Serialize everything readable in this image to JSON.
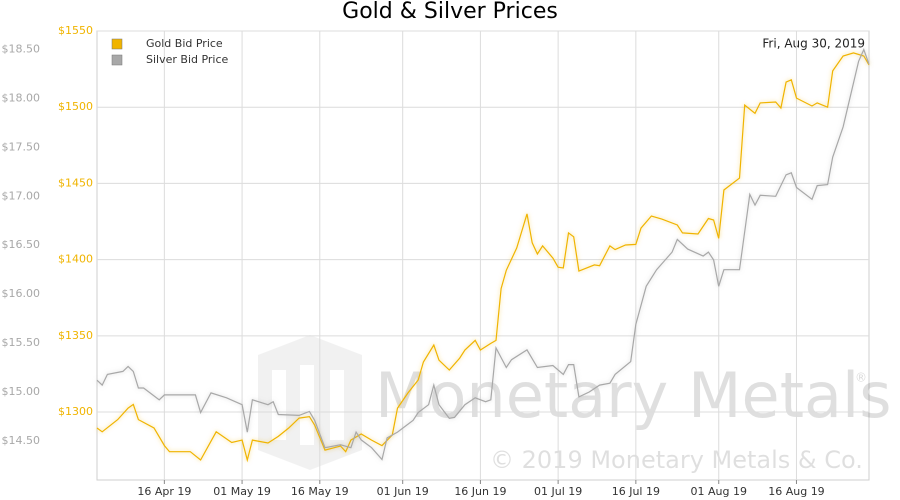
{
  "chart_data": {
    "type": "line",
    "title": "Gold & Silver Prices",
    "annotation": "Fri, Aug 30, 2019",
    "watermark": "Monetary Metals",
    "watermark_mark": "®",
    "copyright": "© 2019 Monetary Metals & Co.",
    "legend": "top-left",
    "grid": true,
    "xlim": [
      "2019-04-03",
      "2019-08-30"
    ],
    "xticks": [
      {
        "value": "2019-04-16",
        "label": "16 Apr 19"
      },
      {
        "value": "2019-05-01",
        "label": "01 May 19"
      },
      {
        "value": "2019-05-16",
        "label": "16 May 19"
      },
      {
        "value": "2019-06-01",
        "label": "01 Jun 19"
      },
      {
        "value": "2019-06-16",
        "label": "16 Jun 19"
      },
      {
        "value": "2019-07-01",
        "label": "01 Jul 19"
      },
      {
        "value": "2019-07-16",
        "label": "16 Jul 19"
      },
      {
        "value": "2019-08-01",
        "label": "01 Aug 19"
      },
      {
        "value": "2019-08-16",
        "label": "16 Aug 19"
      }
    ],
    "ylim": [
      1255.4,
      1550
    ],
    "yticks": [
      {
        "value": 1300,
        "label": "$1300"
      },
      {
        "value": 1350,
        "label": "$1350"
      },
      {
        "value": 1400,
        "label": "$1400"
      },
      {
        "value": 1450,
        "label": "$1450"
      },
      {
        "value": 1500,
        "label": "$1500"
      },
      {
        "value": 1550,
        "label": "$1550"
      }
    ],
    "y2lim": [
      14.1,
      18.69
    ],
    "y2ticks": [
      {
        "value": 14.5,
        "label": "$14.50"
      },
      {
        "value": 15,
        "label": "$15.00"
      },
      {
        "value": 15.5,
        "label": "$15.50"
      },
      {
        "value": 16,
        "label": "$16.00"
      },
      {
        "value": 16.5,
        "label": "$16.50"
      },
      {
        "value": 17,
        "label": "$17.00"
      },
      {
        "value": 17.5,
        "label": "$17.50"
      },
      {
        "value": 18,
        "label": "$18.00"
      },
      {
        "value": 18.5,
        "label": "$18.50"
      }
    ],
    "series": [
      {
        "name": "Gold Bid Price",
        "color": "#f0b400",
        "axis": "y",
        "x": [
          "2019-04-03",
          "2019-04-04",
          "2019-04-07",
          "2019-04-09",
          "2019-04-10",
          "2019-04-11",
          "2019-04-14",
          "2019-04-16",
          "2019-04-17",
          "2019-04-21",
          "2019-04-23",
          "2019-04-26",
          "2019-04-29",
          "2019-05-01",
          "2019-05-02",
          "2019-05-03",
          "2019-05-06",
          "2019-05-08",
          "2019-05-10",
          "2019-05-12",
          "2019-05-14",
          "2019-05-15",
          "2019-05-17",
          "2019-05-20",
          "2019-05-21",
          "2019-05-22",
          "2019-05-24",
          "2019-05-26",
          "2019-05-28",
          "2019-05-30",
          "2019-05-31",
          "2019-06-02",
          "2019-06-04",
          "2019-06-05",
          "2019-06-07",
          "2019-06-08",
          "2019-06-10",
          "2019-06-12",
          "2019-06-13",
          "2019-06-15",
          "2019-06-16",
          "2019-06-18",
          "2019-06-19",
          "2019-06-20",
          "2019-06-21",
          "2019-06-23",
          "2019-06-25",
          "2019-06-26",
          "2019-06-27",
          "2019-06-28",
          "2019-06-30",
          "2019-07-01",
          "2019-07-02",
          "2019-07-03",
          "2019-07-04",
          "2019-07-05",
          "2019-07-08",
          "2019-07-09",
          "2019-07-11",
          "2019-07-12",
          "2019-07-14",
          "2019-07-16",
          "2019-07-17",
          "2019-07-19",
          "2019-07-21",
          "2019-07-24",
          "2019-07-25",
          "2019-07-28",
          "2019-07-30",
          "2019-07-31",
          "2019-08-01",
          "2019-08-02",
          "2019-08-05",
          "2019-08-06",
          "2019-08-08",
          "2019-08-09",
          "2019-08-12",
          "2019-08-13",
          "2019-08-14",
          "2019-08-15",
          "2019-08-16",
          "2019-08-19",
          "2019-08-20",
          "2019-08-22",
          "2019-08-23",
          "2019-08-25",
          "2019-08-27",
          "2019-08-29",
          "2019-08-30"
        ],
        "values": [
          1289.5,
          1287,
          1295,
          1302.6,
          1305,
          1295,
          1289.5,
          1278,
          1274,
          1274,
          1268.5,
          1287,
          1280,
          1281.6,
          1268.5,
          1281.6,
          1279.7,
          1284,
          1289.5,
          1296,
          1297,
          1291.5,
          1275,
          1277.7,
          1274,
          1281.6,
          1285.6,
          1281.6,
          1278,
          1285,
          1302.6,
          1312.5,
          1321,
          1332.8,
          1344,
          1334,
          1327.6,
          1335.4,
          1340.7,
          1347,
          1340.7,
          1345,
          1347,
          1381,
          1393,
          1407.6,
          1430,
          1411,
          1403.7,
          1409,
          1401,
          1395,
          1394.5,
          1417.5,
          1415,
          1392.5,
          1396.5,
          1396,
          1409,
          1406.6,
          1409.6,
          1410,
          1420.7,
          1428.6,
          1426.6,
          1422.7,
          1417.5,
          1416.8,
          1427,
          1426,
          1414,
          1445.7,
          1453.5,
          1501.4,
          1496,
          1502.8,
          1503.4,
          1499.5,
          1516.5,
          1518,
          1506,
          1500.8,
          1502.8,
          1500,
          1523.8,
          1533.6,
          1535.6,
          1533.6,
          1527.7
        ]
      },
      {
        "name": "Silver Bid Price",
        "color": "#a8a8a8",
        "axis": "y2",
        "x": [
          "2019-04-03",
          "2019-04-04",
          "2019-04-05",
          "2019-04-08",
          "2019-04-09",
          "2019-04-10",
          "2019-04-11",
          "2019-04-12",
          "2019-04-15",
          "2019-04-16",
          "2019-04-22",
          "2019-04-23",
          "2019-04-25",
          "2019-04-28",
          "2019-05-01",
          "2019-05-02",
          "2019-05-03",
          "2019-05-06",
          "2019-05-07",
          "2019-05-08",
          "2019-05-12",
          "2019-05-14",
          "2019-05-15",
          "2019-05-17",
          "2019-05-20",
          "2019-05-22",
          "2019-05-23",
          "2019-05-24",
          "2019-05-26",
          "2019-05-28",
          "2019-05-29",
          "2019-05-31",
          "2019-06-03",
          "2019-06-04",
          "2019-06-06",
          "2019-06-07",
          "2019-06-08",
          "2019-06-10",
          "2019-06-11",
          "2019-06-13",
          "2019-06-15",
          "2019-06-17",
          "2019-06-18",
          "2019-06-19",
          "2019-06-21",
          "2019-06-22",
          "2019-06-25",
          "2019-06-27",
          "2019-06-30",
          "2019-07-02",
          "2019-07-03",
          "2019-07-04",
          "2019-07-05",
          "2019-07-07",
          "2019-07-09",
          "2019-07-11",
          "2019-07-12",
          "2019-07-15",
          "2019-07-16",
          "2019-07-18",
          "2019-07-20",
          "2019-07-23",
          "2019-07-24",
          "2019-07-26",
          "2019-07-29",
          "2019-07-30",
          "2019-07-31",
          "2019-08-01",
          "2019-08-02",
          "2019-08-05",
          "2019-08-07",
          "2019-08-08",
          "2019-08-09",
          "2019-08-12",
          "2019-08-14",
          "2019-08-15",
          "2019-08-16",
          "2019-08-19",
          "2019-08-20",
          "2019-08-22",
          "2019-08-23",
          "2019-08-25",
          "2019-08-28",
          "2019-08-29",
          "2019-08-30"
        ],
        "values": [
          15.12,
          15.07,
          15.18,
          15.21,
          15.26,
          15.21,
          15.04,
          15.04,
          14.92,
          14.97,
          14.97,
          14.79,
          14.99,
          14.94,
          14.87,
          14.59,
          14.92,
          14.87,
          14.9,
          14.77,
          14.76,
          14.8,
          14.71,
          14.43,
          14.46,
          14.43,
          14.59,
          14.51,
          14.43,
          14.31,
          14.53,
          14.59,
          14.71,
          14.79,
          14.87,
          15.07,
          14.87,
          14.73,
          14.74,
          14.87,
          14.94,
          14.9,
          14.92,
          15.45,
          15.25,
          15.33,
          15.43,
          15.25,
          15.27,
          15.18,
          15.28,
          15.28,
          14.95,
          15.0,
          15.07,
          15.09,
          15.18,
          15.31,
          15.69,
          16.08,
          16.25,
          16.43,
          16.56,
          16.46,
          16.39,
          16.43,
          16.35,
          16.08,
          16.25,
          16.25,
          17.02,
          16.91,
          17.01,
          17.0,
          17.22,
          17.24,
          17.09,
          16.97,
          17.11,
          17.12,
          17.4,
          17.71,
          18.38,
          18.5,
          18.35
        ]
      }
    ]
  }
}
